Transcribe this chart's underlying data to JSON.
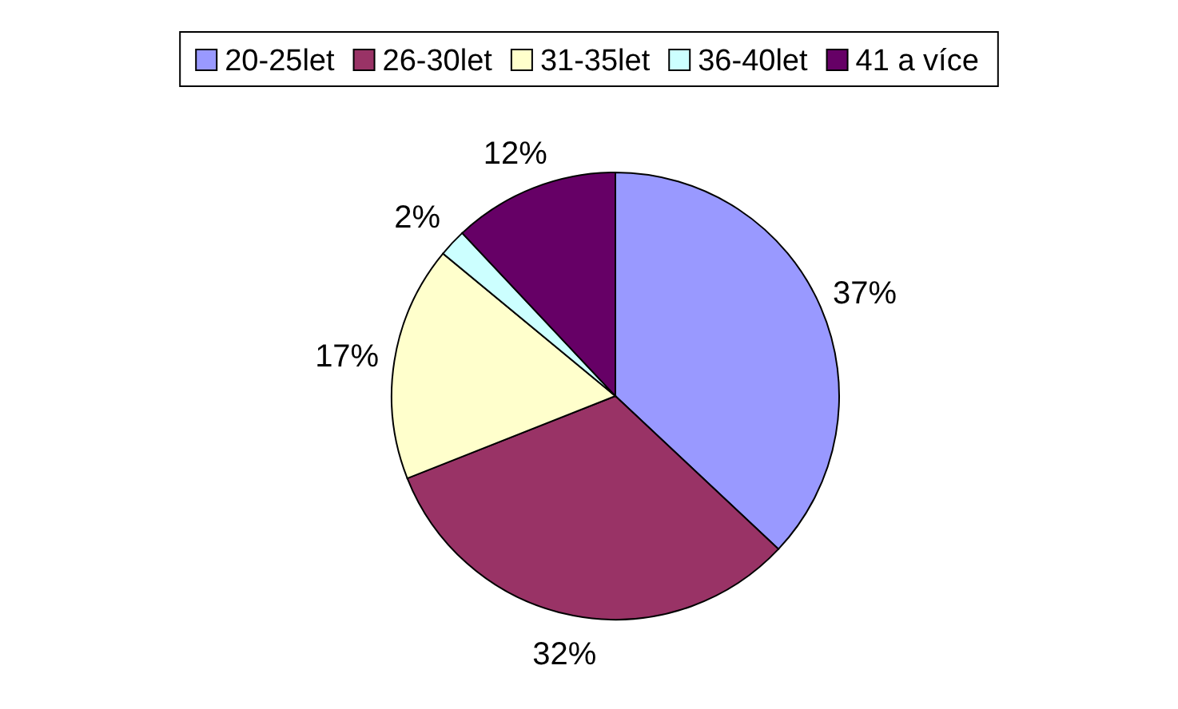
{
  "chart_data": {
    "type": "pie",
    "categories": [
      "20-25let",
      "26-30let",
      "31-35let",
      "36-40let",
      "41 a více"
    ],
    "values": [
      37,
      32,
      17,
      2,
      12
    ],
    "colors": [
      "#9999ff",
      "#993366",
      "#ffffcc",
      "#ccffff",
      "#660066"
    ],
    "value_labels": [
      "37%",
      "32%",
      "17%",
      "2%",
      "12%"
    ],
    "legend": "top"
  }
}
